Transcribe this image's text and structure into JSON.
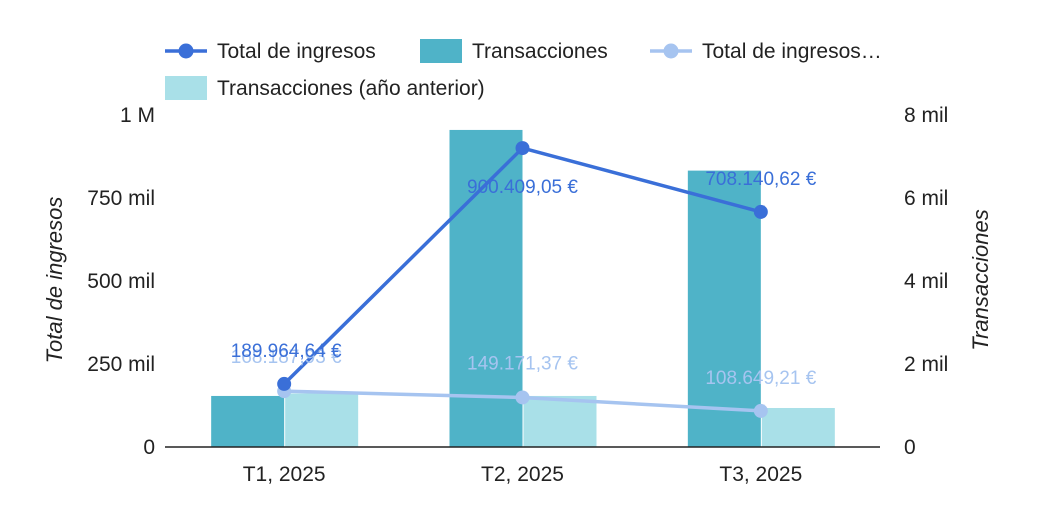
{
  "chart_data": {
    "type": "bar",
    "categories": [
      "T1, 2025",
      "T2, 2025",
      "T3, 2025"
    ],
    "y_left": {
      "label": "Total de ingresos",
      "range": [
        0,
        1000000
      ],
      "ticks": [
        0,
        250000,
        500000,
        750000,
        1000000
      ],
      "tick_labels": [
        "0",
        "250 mil",
        "500 mil",
        "750 mil",
        "1 M"
      ]
    },
    "y_right": {
      "label": "Transacciones",
      "range": [
        0,
        8000
      ],
      "ticks": [
        0,
        2000,
        4000,
        6000,
        8000
      ],
      "tick_labels": [
        "0",
        "2 mil",
        "4 mil",
        "6 mil",
        "8 mil"
      ]
    },
    "legend": {
      "placement": "top",
      "entries": [
        {
          "label": "Total de ingresos",
          "marker": "line-dot",
          "color": "#3a6fd8"
        },
        {
          "label": "Transacciones",
          "marker": "box",
          "color": "#4fb3c8"
        },
        {
          "label": "Total de ingresos…",
          "marker": "line-dot",
          "color": "#a6c4f0"
        },
        {
          "label": "Transacciones (año anterior)",
          "marker": "box",
          "color": "#a9e0e8"
        }
      ]
    },
    "series": [
      {
        "name": "Transacciones",
        "type": "bar",
        "axis": "right",
        "color": "#4fb3c8",
        "values": [
          1230,
          7640,
          6660
        ]
      },
      {
        "name": "Transacciones (año anterior)",
        "type": "bar",
        "axis": "right",
        "color": "#a9e0e8",
        "values": [
          1290,
          1230,
          940
        ]
      },
      {
        "name": "Total de ingresos",
        "type": "line",
        "axis": "left",
        "color": "#3a6fd8",
        "values": [
          189964.64,
          900409.05,
          708140.62
        ],
        "labels": [
          "189.964,64 €",
          "900.409,05 €",
          "708.140,62 €"
        ]
      },
      {
        "name": "Total de ingresos…",
        "type": "line",
        "axis": "left",
        "color": "#a6c4f0",
        "values": [
          168187.93,
          149171.37,
          108649.21
        ],
        "labels": [
          "168.187,93 €",
          "149.171,37 €",
          "108.649,21 €"
        ]
      }
    ],
    "grid": false
  }
}
